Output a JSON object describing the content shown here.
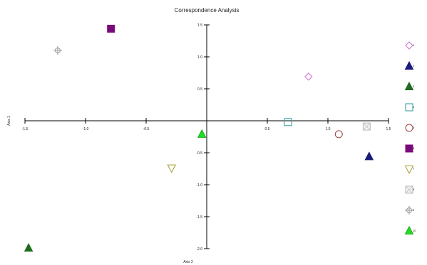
{
  "chart_data": {
    "type": "scatter",
    "title": "Correspondence Analysis",
    "xlabel": "Axis 1",
    "ylabel": "Axis 2",
    "xlim": [
      -1.5,
      1.5
    ],
    "ylim": [
      -2.0,
      1.5
    ],
    "x_ticks": [
      -1.5,
      -1.0,
      -0.5,
      0.5,
      1.0,
      1.5
    ],
    "x_tick_labels": [
      "-1.5",
      "-1.0",
      "-0.5",
      "0.5",
      "1.0",
      "1.5"
    ],
    "y_ticks": [
      1.5,
      1.0,
      0.5,
      -0.5,
      -1.0,
      -1.5,
      -2.0
    ],
    "y_tick_labels": [
      "1.5",
      "1.0",
      "0.5",
      "-0.5",
      "-1.0",
      "-1.5",
      "-2.0"
    ],
    "legend_placement": "right",
    "points": [
      {
        "label": "1",
        "x": 0.84,
        "y": 0.69,
        "marker": "diamond",
        "stroke": "#d070d0",
        "fill": "none"
      },
      {
        "label": "2",
        "x": 1.34,
        "y": -0.56,
        "marker": "triangle",
        "stroke": "#1a1a7a",
        "fill": "#1a1a7a"
      },
      {
        "label": "3",
        "x": -1.47,
        "y": -1.99,
        "marker": "triangle",
        "stroke": "#1f6b1f",
        "fill": "#1f6b1f"
      },
      {
        "label": "4",
        "x": 0.67,
        "y": -0.02,
        "marker": "square",
        "stroke": "#2a9a9a",
        "fill": "none"
      },
      {
        "label": "5",
        "x": 1.09,
        "y": -0.21,
        "marker": "circle",
        "stroke": "#a04040",
        "fill": "none"
      },
      {
        "label": "6",
        "x": -0.79,
        "y": 1.44,
        "marker": "square",
        "stroke": "#7a0a7a",
        "fill": "#7a0a7a"
      },
      {
        "label": "7",
        "x": -0.29,
        "y": -0.74,
        "marker": "triangle-down",
        "stroke": "#a0a030",
        "fill": "none"
      },
      {
        "label": "8",
        "x": 1.32,
        "y": -0.09,
        "marker": "square-cross",
        "stroke": "#bbbbbb",
        "fill": "#f2f2f2"
      },
      {
        "label": "9",
        "x": -1.23,
        "y": 1.1,
        "marker": "circle-cross",
        "stroke": "#999999",
        "fill": "none"
      },
      {
        "label": "10",
        "x": -0.04,
        "y": -0.21,
        "marker": "triangle",
        "stroke": "#1aa81a",
        "fill": "#22dd22"
      }
    ]
  }
}
